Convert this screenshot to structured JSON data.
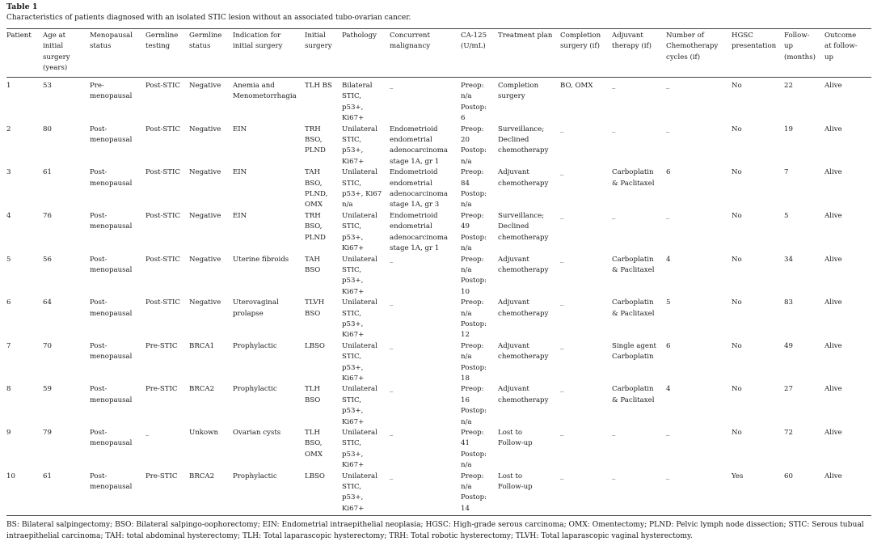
{
  "title": "Table 1",
  "caption": "Characteristics of patients diagnosed with an isolated STIC lesion without an associated tubo-ovarian cancer.",
  "columns": [
    "Patient",
    "Age at\ninitial\nsurgery\n(years)",
    "Menopausal\nstatus",
    "Germline\ntesting",
    "Germline\nstatus",
    "Indication for\ninitial surgery",
    "Initial\nsurgery",
    "Pathology",
    "Concurrent\nmalignancy",
    "CA-125\n(U/mL)",
    "Treatment plan",
    "Completion\nsurgery (if)",
    "Adjuvant\ntherapy (if)",
    "Number of\nChemotherapy\ncycles (if)",
    "HGSC\npresentation",
    "Follow-\nup\n(months)",
    "Outcome\nat follow-\nup"
  ],
  "rows": [
    [
      "1",
      "53",
      "Pre-\nmenopausal",
      "Post-STIC",
      "Negative",
      "Anemia and\nMenometorrhagia",
      "TLH BS",
      "Bilateral\nSTIC,\np53+,\nKi67+",
      "_",
      "Preop:\nn/a\nPostop:\n6",
      "Completion\nsurgery",
      "BO, OMX",
      "_",
      "_",
      "No",
      "22",
      "Alive"
    ],
    [
      "2",
      "80",
      "Post-\nmenopausal",
      "Post-STIC",
      "Negative",
      "EIN",
      "TRH\nBSO,\nPLND",
      "Unilateral\nSTIC,\np53+,\nKi67+",
      "Endometrioid\nendometrial\nadenocarcinoma\nstage 1A, gr 1",
      "Preop:\n20\nPostop:\nn/a",
      "Surveillance;\nDeclined\nchemotherapy",
      "_",
      "_",
      "_",
      "No",
      "19",
      "Alive"
    ],
    [
      "3",
      "61",
      "Post-\nmenopausal",
      "Post-STIC",
      "Negative",
      "EIN",
      "TAH\nBSO,\nPLND,\nOMX",
      "Unilateral\nSTIC,\np53+, Ki67\nn/a",
      "Endometrioid\nendometrial\nadenocarcinoma\nstage 1A, gr 3",
      "Preop:\n84\nPostop:\nn/a",
      "Adjuvant\nchemotherapy",
      "_",
      "Carboplatin\n& Paclitaxel",
      "6",
      "No",
      "7",
      "Alive"
    ],
    [
      "4",
      "76",
      "Post-\nmenopausal",
      "Post-STIC",
      "Negative",
      "EIN",
      "TRH\nBSO,\nPLND",
      "Unilateral\nSTIC,\np53+,\nKi67+",
      "Endometrioid\nendometrial\nadenocarcinoma\nstage 1A, gr 1",
      "Preop:\n49\nPostop:\nn/a",
      "Surveillance;\nDeclined\nchemotherapy",
      "_",
      "_",
      "_",
      "No",
      "5",
      "Alive"
    ],
    [
      "5",
      "56",
      "Post-\nmenopausal",
      "Post-STIC",
      "Negative",
      "Uterine fibroids",
      "TAH\nBSO",
      "Unilateral\nSTIC,\np53+,\nKi67+",
      "_",
      "Preop:\nn/a\nPostop:\n10",
      "Adjuvant\nchemotherapy",
      "_",
      "Carboplatin\n& Paclitaxel",
      "4",
      "No",
      "34",
      "Alive"
    ],
    [
      "6",
      "64",
      "Post-\nmenopausal",
      "Post-STIC",
      "Negative",
      "Uterovaginal\nprolapse",
      "TLVH\nBSO",
      "Unilateral\nSTIC,\np53+,\nKi67+",
      "_",
      "Preop:\nn/a\nPostop:\n12",
      "Adjuvant\nchemotherapy",
      "_",
      "Carboplatin\n& Paclitaxel",
      "5",
      "No",
      "83",
      "Alive"
    ],
    [
      "7",
      "70",
      "Post-\nmenopausal",
      "Pre-STIC",
      "BRCA1",
      "Prophylactic",
      "LBSO",
      "Unilateral\nSTIC,\np53+,\nKi67+",
      "_",
      "Preop:\nn/a\nPostop:\n18",
      "Adjuvant\nchemotherapy",
      "_",
      "Single agent\nCarboplatin",
      "6",
      "No",
      "49",
      "Alive"
    ],
    [
      "8",
      "59",
      "Post-\nmenopausal",
      "Pre-STIC",
      "BRCA2",
      "Prophylactic",
      "TLH\nBSO",
      "Unilateral\nSTIC,\np53+,\nKi67+",
      "_",
      "Preop:\n16\nPostop:\nn/a",
      "Adjuvant\nchemotherapy",
      "_",
      "Carboplatin\n& Paclitaxel",
      "4",
      "No",
      "27",
      "Alive"
    ],
    [
      "9",
      "79",
      "Post-\nmenopausal",
      "_",
      "Unkown",
      "Ovarian cysts",
      "TLH\nBSO,\nOMX",
      "Unilateral\nSTIC,\np53+,\nKi67+",
      "_",
      "Preop:\n41\nPostop:\nn/a",
      "Lost to\nFollow-up",
      "_",
      "_",
      "_",
      "No",
      "72",
      "Alive"
    ],
    [
      "10",
      "61",
      "Post-\nmenopausal",
      "Pre-STIC",
      "BRCA2",
      "Prophylactic",
      "LBSO",
      "Unilateral\nSTIC,\np53+,\nKi67+",
      "_",
      "Preop:\nn/a\nPostop:\n14",
      "Lost to\nFollow-up",
      "_",
      "_",
      "_",
      "Yes",
      "60",
      "Alive"
    ]
  ],
  "footnote": "BS: Bilateral salpingectomy; BSO: Bilateral salpingo-oophorectomy; EIN: Endometrial intraepithelial neoplasia; HGSC: High-grade serous carcinoma; OMX: Omentectomy; PLND: Pelvic lymph node dissection; STIC: Serous tubual intraepithelial carcinoma; TAH: total abdominal hysterectomy; TLH: Total laparascopic hysterectomy; TRH: Total robotic hysterectomy; TLVH: Total laparascopic vaginal hysterectomy."
}
